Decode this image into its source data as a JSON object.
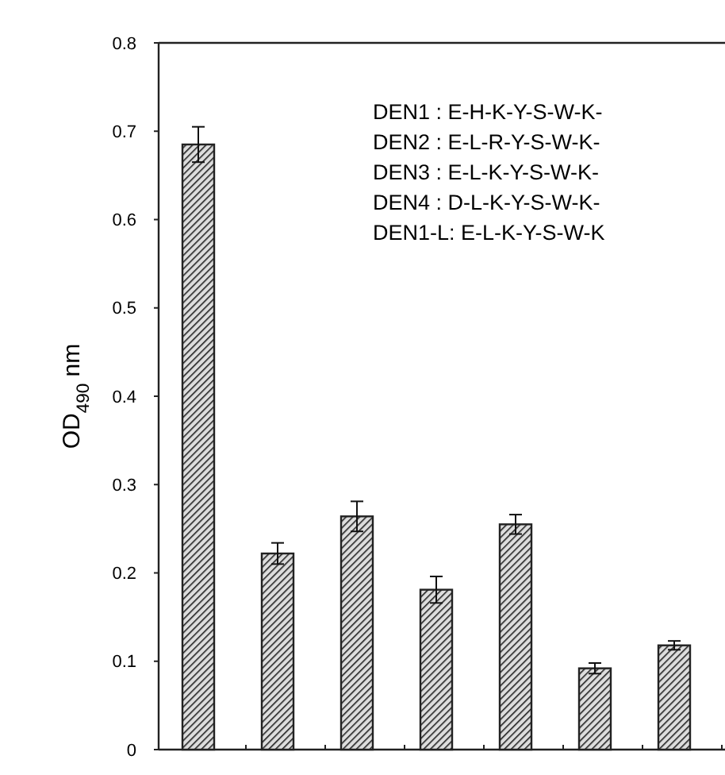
{
  "chart_data": {
    "type": "bar",
    "ylabel": "OD$_{490}$ nm",
    "categories": [
      null,
      null,
      null,
      null,
      null,
      null,
      null
    ],
    "values": [
      0.685,
      0.222,
      0.264,
      0.181,
      0.255,
      0.092,
      0.118
    ],
    "errors": [
      0.02,
      0.012,
      0.017,
      0.015,
      0.011,
      0.006,
      0.005
    ],
    "color": "#222222",
    "ylim": [
      0,
      0.8
    ],
    "yticks": [
      {
        "value": 0,
        "label": "0"
      },
      0.1,
      0.2,
      0.3,
      0.4,
      0.5,
      0.6,
      0.7,
      0.8
    ],
    "grid": false,
    "annotations": [
      "DEN1 : E-H-K-Y-S-W-K-",
      "DEN2 : E-L-R-Y-S-W-K-",
      "DEN3 : E-L-K-Y-S-W-K-",
      "DEN4 : D-L-K-Y-S-W-K-",
      "DEN1-L: E-L-K-Y-S-W-K"
    ]
  }
}
